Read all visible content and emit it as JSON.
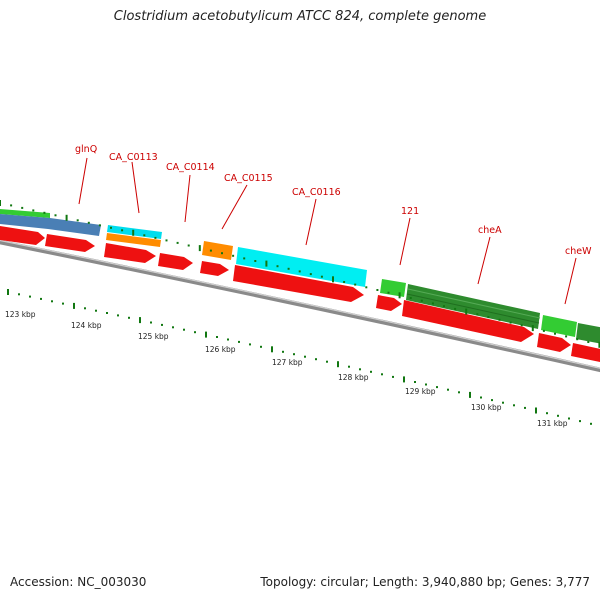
{
  "title": "Clostridium acetobutylicum ATCC 824, complete genome",
  "footer": {
    "accession": "Accession: NC_003030",
    "stats": "Topology: circular; Length: 3,940,880 bp; Genes: 3,777"
  },
  "colors": {
    "backbone": "#888888",
    "cds": "#ee1111",
    "gene_label": "#cc0000",
    "tick": "#117711",
    "steelblue": "#4a7fb5",
    "green": "#33cc33",
    "darkgreen": "#228b22",
    "cyan": "#00e5ee",
    "orange": "#ff8c00"
  },
  "genes": [
    {
      "name": "glnQ",
      "color": "steelblue"
    },
    {
      "name": "CA_C0113",
      "color": "cyan"
    },
    {
      "name": "CA_C0114",
      "color": "orange"
    },
    {
      "name": "CA_C0115",
      "color": "orange"
    },
    {
      "name": "CA_C0116",
      "color": "cyan"
    },
    {
      "name": "121",
      "color": "green"
    },
    {
      "name": "cheA",
      "color": "darkgreen"
    },
    {
      "name": "cheW",
      "color": "green"
    }
  ],
  "kbp_labels": [
    "123 kbp",
    "124 kbp",
    "125 kbp",
    "126 kbp",
    "127 kbp",
    "128 kbp",
    "129 kbp",
    "130 kbp",
    "131 kbp"
  ]
}
